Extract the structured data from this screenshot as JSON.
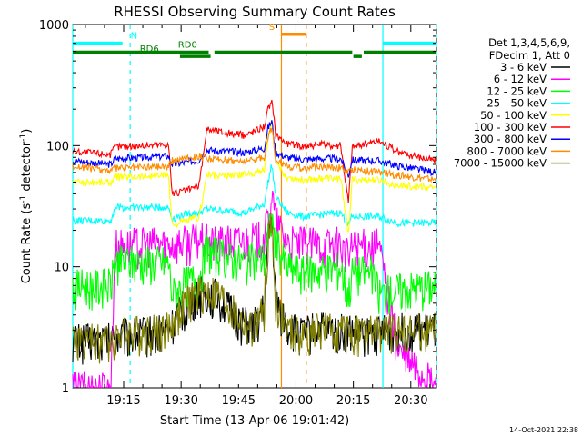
{
  "chart_data": {
    "type": "line",
    "title": "RHESSI Observing Summary Count Rates",
    "xlabel": "Start Time (13-Apr-06 19:01:42)",
    "ylabel_main": "Count Rate (s",
    "ylabel_sup1": "-1",
    "ylabel_mid": " detector",
    "ylabel_sup2": "-1",
    "ylabel_end": ")",
    "y_scale": "log",
    "ylim": [
      1,
      1000
    ],
    "xlim_minutes": [
      0,
      95
    ],
    "x_ticks": [
      {
        "label": "19:15",
        "value": 13.3
      },
      {
        "label": "19:30",
        "value": 28.3
      },
      {
        "label": "19:45",
        "value": 43.3
      },
      {
        "label": "20:00",
        "value": 58.3
      },
      {
        "label": "20:15",
        "value": 73.3
      },
      {
        "label": "20:30",
        "value": 88.3
      }
    ],
    "y_ticks": [
      {
        "label": "1",
        "value": 1
      },
      {
        "label": "10",
        "value": 10
      },
      {
        "label": "100",
        "value": 100
      },
      {
        "label": "1000",
        "value": 1000
      }
    ],
    "legend_header": [
      "Det 1,3,4,5,6,9,",
      "FDecim 1, Att 0"
    ],
    "legend_placement": "right",
    "timestamp": "14-Oct-2021 22:38",
    "series": [
      {
        "name": "3 - 6 keV",
        "color": "#000000",
        "values": [
          [
            0,
            2.5
          ],
          [
            10,
            2.5
          ],
          [
            11,
            2.7
          ],
          [
            25,
            3.0
          ],
          [
            28,
            4.2
          ],
          [
            31,
            5.3
          ],
          [
            34,
            6.2
          ],
          [
            38,
            5.8
          ],
          [
            42,
            4.0
          ],
          [
            45,
            3.4
          ],
          [
            47,
            3.1
          ],
          [
            48,
            3.6
          ],
          [
            50,
            4.5
          ],
          [
            51,
            18
          ],
          [
            52,
            26
          ],
          [
            53,
            5.5
          ],
          [
            56,
            3.2
          ],
          [
            60,
            2.8
          ],
          [
            64,
            3.2
          ],
          [
            67,
            3.0
          ],
          [
            72,
            3.0
          ],
          [
            76,
            2.8
          ],
          [
            85,
            3.0
          ],
          [
            95,
            3.0
          ]
        ]
      },
      {
        "name": "6 - 12 keV",
        "color": "#ff00ff",
        "values": [
          [
            0,
            1
          ],
          [
            10,
            1
          ],
          [
            11,
            15
          ],
          [
            20,
            15.5
          ],
          [
            30,
            16
          ],
          [
            33,
            17
          ],
          [
            35,
            16
          ],
          [
            42,
            16
          ],
          [
            50,
            17.5
          ],
          [
            51,
            25
          ],
          [
            52,
            40
          ],
          [
            53,
            24
          ],
          [
            56,
            16
          ],
          [
            60,
            15.5
          ],
          [
            65,
            15.5
          ],
          [
            70,
            15.5
          ],
          [
            72,
            12
          ],
          [
            73,
            15
          ],
          [
            80,
            15
          ],
          [
            85,
            2
          ],
          [
            95,
            1
          ]
        ]
      },
      {
        "name": "12 - 25 keV",
        "color": "#00ff00",
        "values": [
          [
            0,
            7
          ],
          [
            10,
            7
          ],
          [
            11,
            11
          ],
          [
            25,
            11
          ],
          [
            26,
            6
          ],
          [
            30,
            7.5
          ],
          [
            33,
            8.5
          ],
          [
            35,
            14
          ],
          [
            38,
            12.5
          ],
          [
            45,
            11
          ],
          [
            50,
            12
          ],
          [
            51,
            18
          ],
          [
            52,
            25
          ],
          [
            53,
            16
          ],
          [
            56,
            10
          ],
          [
            60,
            9
          ],
          [
            65,
            9.5
          ],
          [
            70,
            10
          ],
          [
            72,
            6
          ],
          [
            73,
            9
          ],
          [
            78,
            9
          ],
          [
            80,
            6
          ],
          [
            85,
            6.5
          ],
          [
            95,
            7
          ]
        ]
      },
      {
        "name": "25 - 50 keV",
        "color": "#00ffff",
        "values": [
          [
            0,
            24
          ],
          [
            10,
            24
          ],
          [
            11,
            31
          ],
          [
            25,
            31
          ],
          [
            26,
            25
          ],
          [
            30,
            27.5
          ],
          [
            33,
            28
          ],
          [
            35,
            30
          ],
          [
            40,
            29
          ],
          [
            45,
            28
          ],
          [
            50,
            33
          ],
          [
            51,
            50
          ],
          [
            52,
            70
          ],
          [
            53,
            38
          ],
          [
            56,
            28
          ],
          [
            60,
            26
          ],
          [
            65,
            27
          ],
          [
            70,
            28
          ],
          [
            72,
            22
          ],
          [
            73,
            26
          ],
          [
            80,
            26
          ],
          [
            85,
            23
          ],
          [
            95,
            23
          ]
        ]
      },
      {
        "name": "50 - 100 keV",
        "color": "#ffff00",
        "values": [
          [
            0,
            50
          ],
          [
            10,
            50
          ],
          [
            11,
            55
          ],
          [
            25,
            57
          ],
          [
            26,
            22
          ],
          [
            30,
            24
          ],
          [
            33,
            25.5
          ],
          [
            35,
            58
          ],
          [
            38,
            56
          ],
          [
            45,
            58
          ],
          [
            50,
            63
          ],
          [
            51,
            120
          ],
          [
            52,
            150
          ],
          [
            53,
            72
          ],
          [
            56,
            55
          ],
          [
            60,
            52
          ],
          [
            65,
            54
          ],
          [
            70,
            53
          ],
          [
            72,
            19
          ],
          [
            73,
            52
          ],
          [
            80,
            52
          ],
          [
            85,
            47
          ],
          [
            95,
            45
          ]
        ]
      },
      {
        "name": "100 - 300 keV",
        "color": "#ff0000",
        "values": [
          [
            0,
            90
          ],
          [
            10,
            85
          ],
          [
            11,
            98
          ],
          [
            25,
            103
          ],
          [
            26,
            40
          ],
          [
            30,
            43
          ],
          [
            33,
            47
          ],
          [
            35,
            138
          ],
          [
            40,
            128
          ],
          [
            45,
            122
          ],
          [
            50,
            145
          ],
          [
            51,
            200
          ],
          [
            52,
            230
          ],
          [
            53,
            125
          ],
          [
            56,
            104
          ],
          [
            60,
            100
          ],
          [
            65,
            102
          ],
          [
            70,
            100
          ],
          [
            72,
            34
          ],
          [
            73,
            98
          ],
          [
            80,
            110
          ],
          [
            85,
            88
          ],
          [
            95,
            75
          ]
        ]
      },
      {
        "name": "300 - 800 keV",
        "color": "#0000ff",
        "values": [
          [
            0,
            75
          ],
          [
            10,
            70
          ],
          [
            11,
            78
          ],
          [
            25,
            82
          ],
          [
            26,
            70
          ],
          [
            30,
            73
          ],
          [
            33,
            76
          ],
          [
            35,
            92
          ],
          [
            40,
            90
          ],
          [
            45,
            88
          ],
          [
            50,
            95
          ],
          [
            51,
            140
          ],
          [
            52,
            160
          ],
          [
            53,
            88
          ],
          [
            56,
            80
          ],
          [
            60,
            77
          ],
          [
            65,
            78
          ],
          [
            70,
            78
          ],
          [
            72,
            57
          ],
          [
            73,
            76
          ],
          [
            80,
            75
          ],
          [
            85,
            68
          ],
          [
            95,
            60
          ]
        ]
      },
      {
        "name": "800 - 7000 keV",
        "color": "#ff8c00",
        "values": [
          [
            0,
            68
          ],
          [
            10,
            62
          ],
          [
            11,
            65
          ],
          [
            25,
            68
          ],
          [
            26,
            75
          ],
          [
            30,
            80
          ],
          [
            33,
            82
          ],
          [
            35,
            78
          ],
          [
            40,
            76
          ],
          [
            45,
            74
          ],
          [
            50,
            80
          ],
          [
            51,
            120
          ],
          [
            52,
            140
          ],
          [
            53,
            78
          ],
          [
            56,
            68
          ],
          [
            60,
            65
          ],
          [
            65,
            67
          ],
          [
            70,
            66
          ],
          [
            72,
            60
          ],
          [
            73,
            64
          ],
          [
            80,
            60
          ],
          [
            85,
            57
          ],
          [
            95,
            52
          ]
        ]
      },
      {
        "name": "7000 - 15000 keV",
        "color": "#808000",
        "values": [
          [
            0,
            2.5
          ],
          [
            10,
            2.5
          ],
          [
            11,
            2.8
          ],
          [
            25,
            3.1
          ],
          [
            28,
            4.4
          ],
          [
            31,
            5.6
          ],
          [
            34,
            6.4
          ],
          [
            38,
            6.0
          ],
          [
            42,
            4.2
          ],
          [
            45,
            3.3
          ],
          [
            47,
            3.0
          ],
          [
            48,
            3.5
          ],
          [
            50,
            4.4
          ],
          [
            51,
            17
          ],
          [
            52,
            22
          ],
          [
            53,
            5.2
          ],
          [
            56,
            3.0
          ],
          [
            60,
            2.7
          ],
          [
            64,
            3.1
          ],
          [
            67,
            3.0
          ],
          [
            72,
            2.9
          ],
          [
            76,
            2.9
          ],
          [
            85,
            3.0
          ],
          [
            95,
            3.0
          ]
        ]
      }
    ],
    "annotations": [
      {
        "label": "N",
        "color": "#00ffff",
        "y": 700,
        "segments": [
          [
            0,
            13
          ],
          [
            81,
            95
          ]
        ],
        "label_x": 16
      },
      {
        "label": "S",
        "color": "#ff8c00",
        "y": 830,
        "segments": [
          [
            54.5,
            61
          ]
        ],
        "label_x": 52
      },
      {
        "label": "RD0",
        "color": "#008000",
        "y": 590,
        "segments": [
          [
            0,
            35.5
          ],
          [
            37,
            73
          ],
          [
            76,
            95
          ]
        ],
        "label_x": 30
      },
      {
        "label": "RD6",
        "color": "#008000",
        "y": 545,
        "segments": [
          [
            28,
            36
          ],
          [
            73.3,
            75.5
          ]
        ],
        "label_x": 20
      }
    ],
    "vlines": [
      {
        "x": 0,
        "color": "#00ffff",
        "style": "solid"
      },
      {
        "x": 15,
        "color": "#00ffff",
        "style": "dashed"
      },
      {
        "x": 81,
        "color": "#00ffff",
        "style": "solid"
      },
      {
        "x": 95,
        "color": "#00ffff",
        "style": "dashed"
      },
      {
        "x": 54.5,
        "color": "#ff8c00",
        "style": "solid"
      },
      {
        "x": 61,
        "color": "#ff8c00",
        "style": "dashed"
      }
    ]
  }
}
